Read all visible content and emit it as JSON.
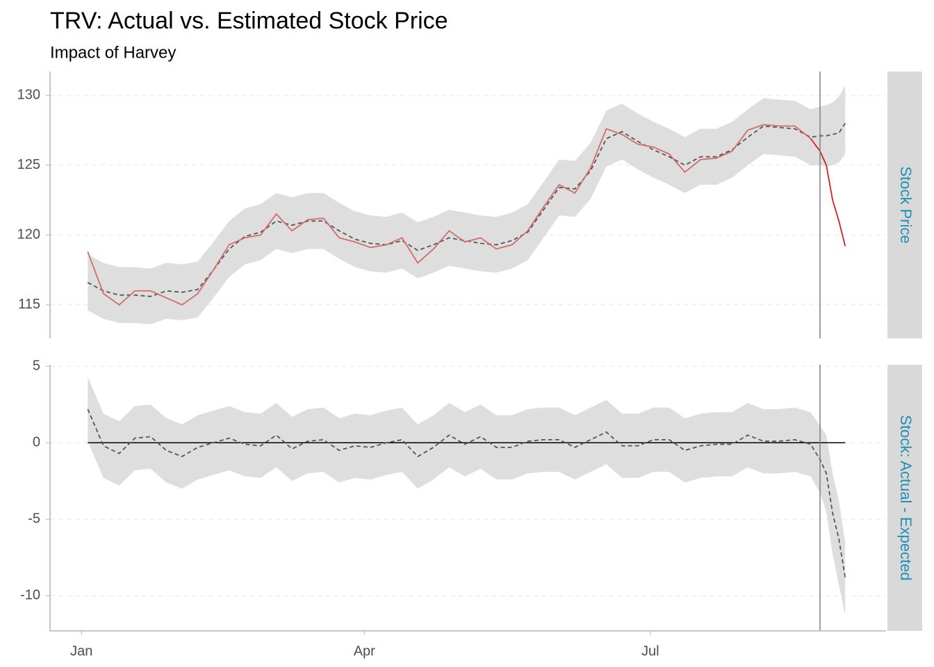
{
  "title": "TRV: Actual vs. Estimated Stock Price",
  "subtitle": "Impact of Harvey",
  "chart_data": [
    {
      "type": "line",
      "strip": "Stock Price",
      "x": [
        2,
        7,
        12,
        17,
        22,
        27,
        32,
        37,
        42,
        47,
        52,
        57,
        62,
        67,
        72,
        77,
        82,
        87,
        92,
        97,
        102,
        107,
        112,
        117,
        122,
        127,
        132,
        137,
        142,
        147,
        152,
        157,
        162,
        167,
        172,
        177,
        182,
        187,
        192,
        197,
        202,
        207,
        212,
        217,
        222,
        227,
        232,
        235,
        237,
        239,
        241,
        243
      ],
      "xlim": [
        -10,
        256
      ],
      "ylim": [
        112.6,
        131.7
      ],
      "yticks": [
        115,
        120,
        125,
        130
      ],
      "grid": true,
      "vline": 235,
      "band": {
        "color": "#dedede",
        "upper": [
          118.6,
          118.0,
          117.7,
          117.7,
          117.6,
          118.0,
          117.9,
          118.1,
          119.5,
          121.0,
          121.9,
          122.2,
          123.0,
          122.7,
          123.0,
          123.0,
          122.3,
          121.7,
          121.4,
          121.3,
          121.6,
          120.9,
          121.3,
          121.8,
          121.6,
          121.4,
          121.3,
          121.6,
          122.2,
          123.8,
          125.4,
          125.3,
          126.6,
          128.9,
          129.4,
          128.7,
          128.1,
          127.6,
          127.0,
          127.6,
          127.6,
          128.1,
          129.0,
          129.8,
          129.7,
          129.6,
          129.0,
          129.2,
          129.3,
          129.5,
          129.9,
          130.7
        ],
        "lower": [
          114.6,
          114.0,
          113.7,
          113.7,
          113.6,
          114.0,
          113.9,
          114.1,
          115.5,
          117.0,
          117.9,
          118.2,
          119.0,
          118.7,
          119.0,
          119.0,
          118.3,
          117.7,
          117.4,
          117.3,
          117.6,
          116.9,
          117.3,
          117.8,
          117.6,
          117.4,
          117.3,
          117.6,
          118.2,
          119.8,
          121.4,
          121.3,
          122.6,
          124.9,
          125.4,
          124.7,
          124.1,
          123.6,
          123.0,
          123.6,
          123.6,
          124.1,
          125.0,
          125.8,
          125.7,
          125.6,
          125.0,
          125.0,
          124.9,
          125.0,
          125.2,
          125.8
        ]
      },
      "series": [
        {
          "color": "#555555",
          "dash": true,
          "values": [
            116.6,
            116.0,
            115.7,
            115.7,
            115.6,
            116.0,
            115.9,
            116.1,
            117.5,
            119.0,
            119.9,
            120.2,
            121.0,
            120.7,
            121.0,
            121.0,
            120.3,
            119.7,
            119.4,
            119.3,
            119.6,
            118.9,
            119.3,
            119.8,
            119.6,
            119.4,
            119.3,
            119.6,
            120.2,
            121.8,
            123.4,
            123.3,
            124.6,
            126.9,
            127.4,
            126.7,
            126.1,
            125.6,
            125.0,
            125.6,
            125.6,
            126.1,
            127.0,
            127.8,
            127.7,
            127.6,
            127.0,
            127.1,
            127.1,
            127.2,
            127.3,
            128.0
          ]
        },
        {
          "color": "#d46a6a",
          "values": [
            118.8,
            115.8,
            115.0,
            116.0,
            116.0,
            115.5,
            115.0,
            115.8,
            117.5,
            119.3,
            119.8,
            120.0,
            121.5,
            120.3,
            121.1,
            121.2,
            119.8,
            119.5,
            119.1,
            119.3,
            119.8,
            118.0,
            119.0,
            120.3,
            119.5,
            119.8,
            119.0,
            119.3,
            120.3,
            122.0,
            123.6,
            123.0,
            124.8,
            127.6,
            127.2,
            126.5,
            126.3,
            125.8,
            124.5,
            125.4,
            125.5,
            126.0,
            127.5,
            127.9,
            127.8,
            127.8,
            126.9,
            null,
            null,
            null,
            null,
            null
          ]
        },
        {
          "color": "#cc2222",
          "values": [
            null,
            null,
            null,
            null,
            null,
            null,
            null,
            null,
            null,
            null,
            null,
            null,
            null,
            null,
            null,
            null,
            null,
            null,
            null,
            null,
            null,
            null,
            null,
            null,
            null,
            null,
            null,
            null,
            null,
            null,
            null,
            null,
            null,
            null,
            null,
            null,
            null,
            null,
            null,
            null,
            null,
            null,
            null,
            null,
            null,
            null,
            126.9,
            126.0,
            125.0,
            122.5,
            121.0,
            119.2
          ]
        }
      ]
    },
    {
      "type": "line",
      "strip": "Stock: Actual - Expected",
      "x": [
        2,
        7,
        12,
        17,
        22,
        27,
        32,
        37,
        42,
        47,
        52,
        57,
        62,
        67,
        72,
        77,
        82,
        87,
        92,
        97,
        102,
        107,
        112,
        117,
        122,
        127,
        132,
        137,
        142,
        147,
        152,
        157,
        162,
        167,
        172,
        177,
        182,
        187,
        192,
        197,
        202,
        207,
        212,
        217,
        222,
        227,
        232,
        235,
        237,
        239,
        241,
        243
      ],
      "xlim": [
        -10,
        256
      ],
      "xticks": [
        {
          "value": 0,
          "label": "Jan"
        },
        {
          "value": 90,
          "label": "Apr"
        },
        {
          "value": 181,
          "label": "Jul"
        }
      ],
      "ylim": [
        -12.3,
        5.1
      ],
      "yticks": [
        -10,
        -5,
        0,
        5
      ],
      "grid": true,
      "vline": 235,
      "hline": 0,
      "band": {
        "color": "#dedede",
        "upper": [
          4.3,
          1.9,
          1.4,
          2.4,
          2.5,
          1.6,
          1.2,
          1.8,
          2.1,
          2.4,
          2.0,
          1.9,
          2.6,
          1.7,
          2.2,
          2.3,
          1.6,
          1.9,
          1.8,
          2.1,
          2.3,
          1.2,
          1.8,
          2.6,
          2.0,
          2.5,
          1.8,
          1.8,
          2.2,
          2.3,
          2.3,
          1.8,
          2.3,
          2.8,
          1.9,
          1.9,
          2.3,
          2.3,
          1.6,
          1.9,
          2.0,
          2.0,
          2.6,
          2.2,
          2.2,
          2.3,
          2.0,
          1.1,
          0.5,
          -2.0,
          -3.8,
          -6.5
        ],
        "lower": [
          0.1,
          -2.3,
          -2.8,
          -1.8,
          -1.7,
          -2.6,
          -3.0,
          -2.4,
          -2.1,
          -1.8,
          -2.2,
          -2.3,
          -1.6,
          -2.5,
          -2.0,
          -1.9,
          -2.6,
          -2.3,
          -2.4,
          -2.1,
          -1.9,
          -3.0,
          -2.4,
          -1.6,
          -2.2,
          -1.7,
          -2.4,
          -2.4,
          -2.0,
          -1.9,
          -1.9,
          -2.4,
          -1.9,
          -1.4,
          -2.3,
          -2.3,
          -1.9,
          -1.9,
          -2.6,
          -2.3,
          -2.2,
          -2.2,
          -1.6,
          -2.0,
          -2.0,
          -1.9,
          -2.2,
          -3.3,
          -4.5,
          -7.3,
          -9.3,
          -11.3
        ]
      },
      "series": [
        {
          "color": "#555555",
          "dash": true,
          "values": [
            2.2,
            -0.2,
            -0.7,
            0.3,
            0.4,
            -0.5,
            -0.9,
            -0.3,
            0.0,
            0.3,
            -0.1,
            -0.2,
            0.5,
            -0.4,
            0.1,
            0.2,
            -0.5,
            -0.2,
            -0.3,
            0.0,
            0.2,
            -0.9,
            -0.3,
            0.5,
            -0.1,
            0.4,
            -0.3,
            -0.3,
            0.1,
            0.2,
            0.2,
            -0.3,
            0.2,
            0.7,
            -0.2,
            -0.2,
            0.2,
            0.2,
            -0.5,
            -0.2,
            -0.1,
            -0.1,
            0.5,
            0.1,
            0.1,
            0.2,
            -0.1,
            -1.1,
            -2.0,
            -4.6,
            -6.3,
            -8.8
          ]
        }
      ]
    }
  ]
}
